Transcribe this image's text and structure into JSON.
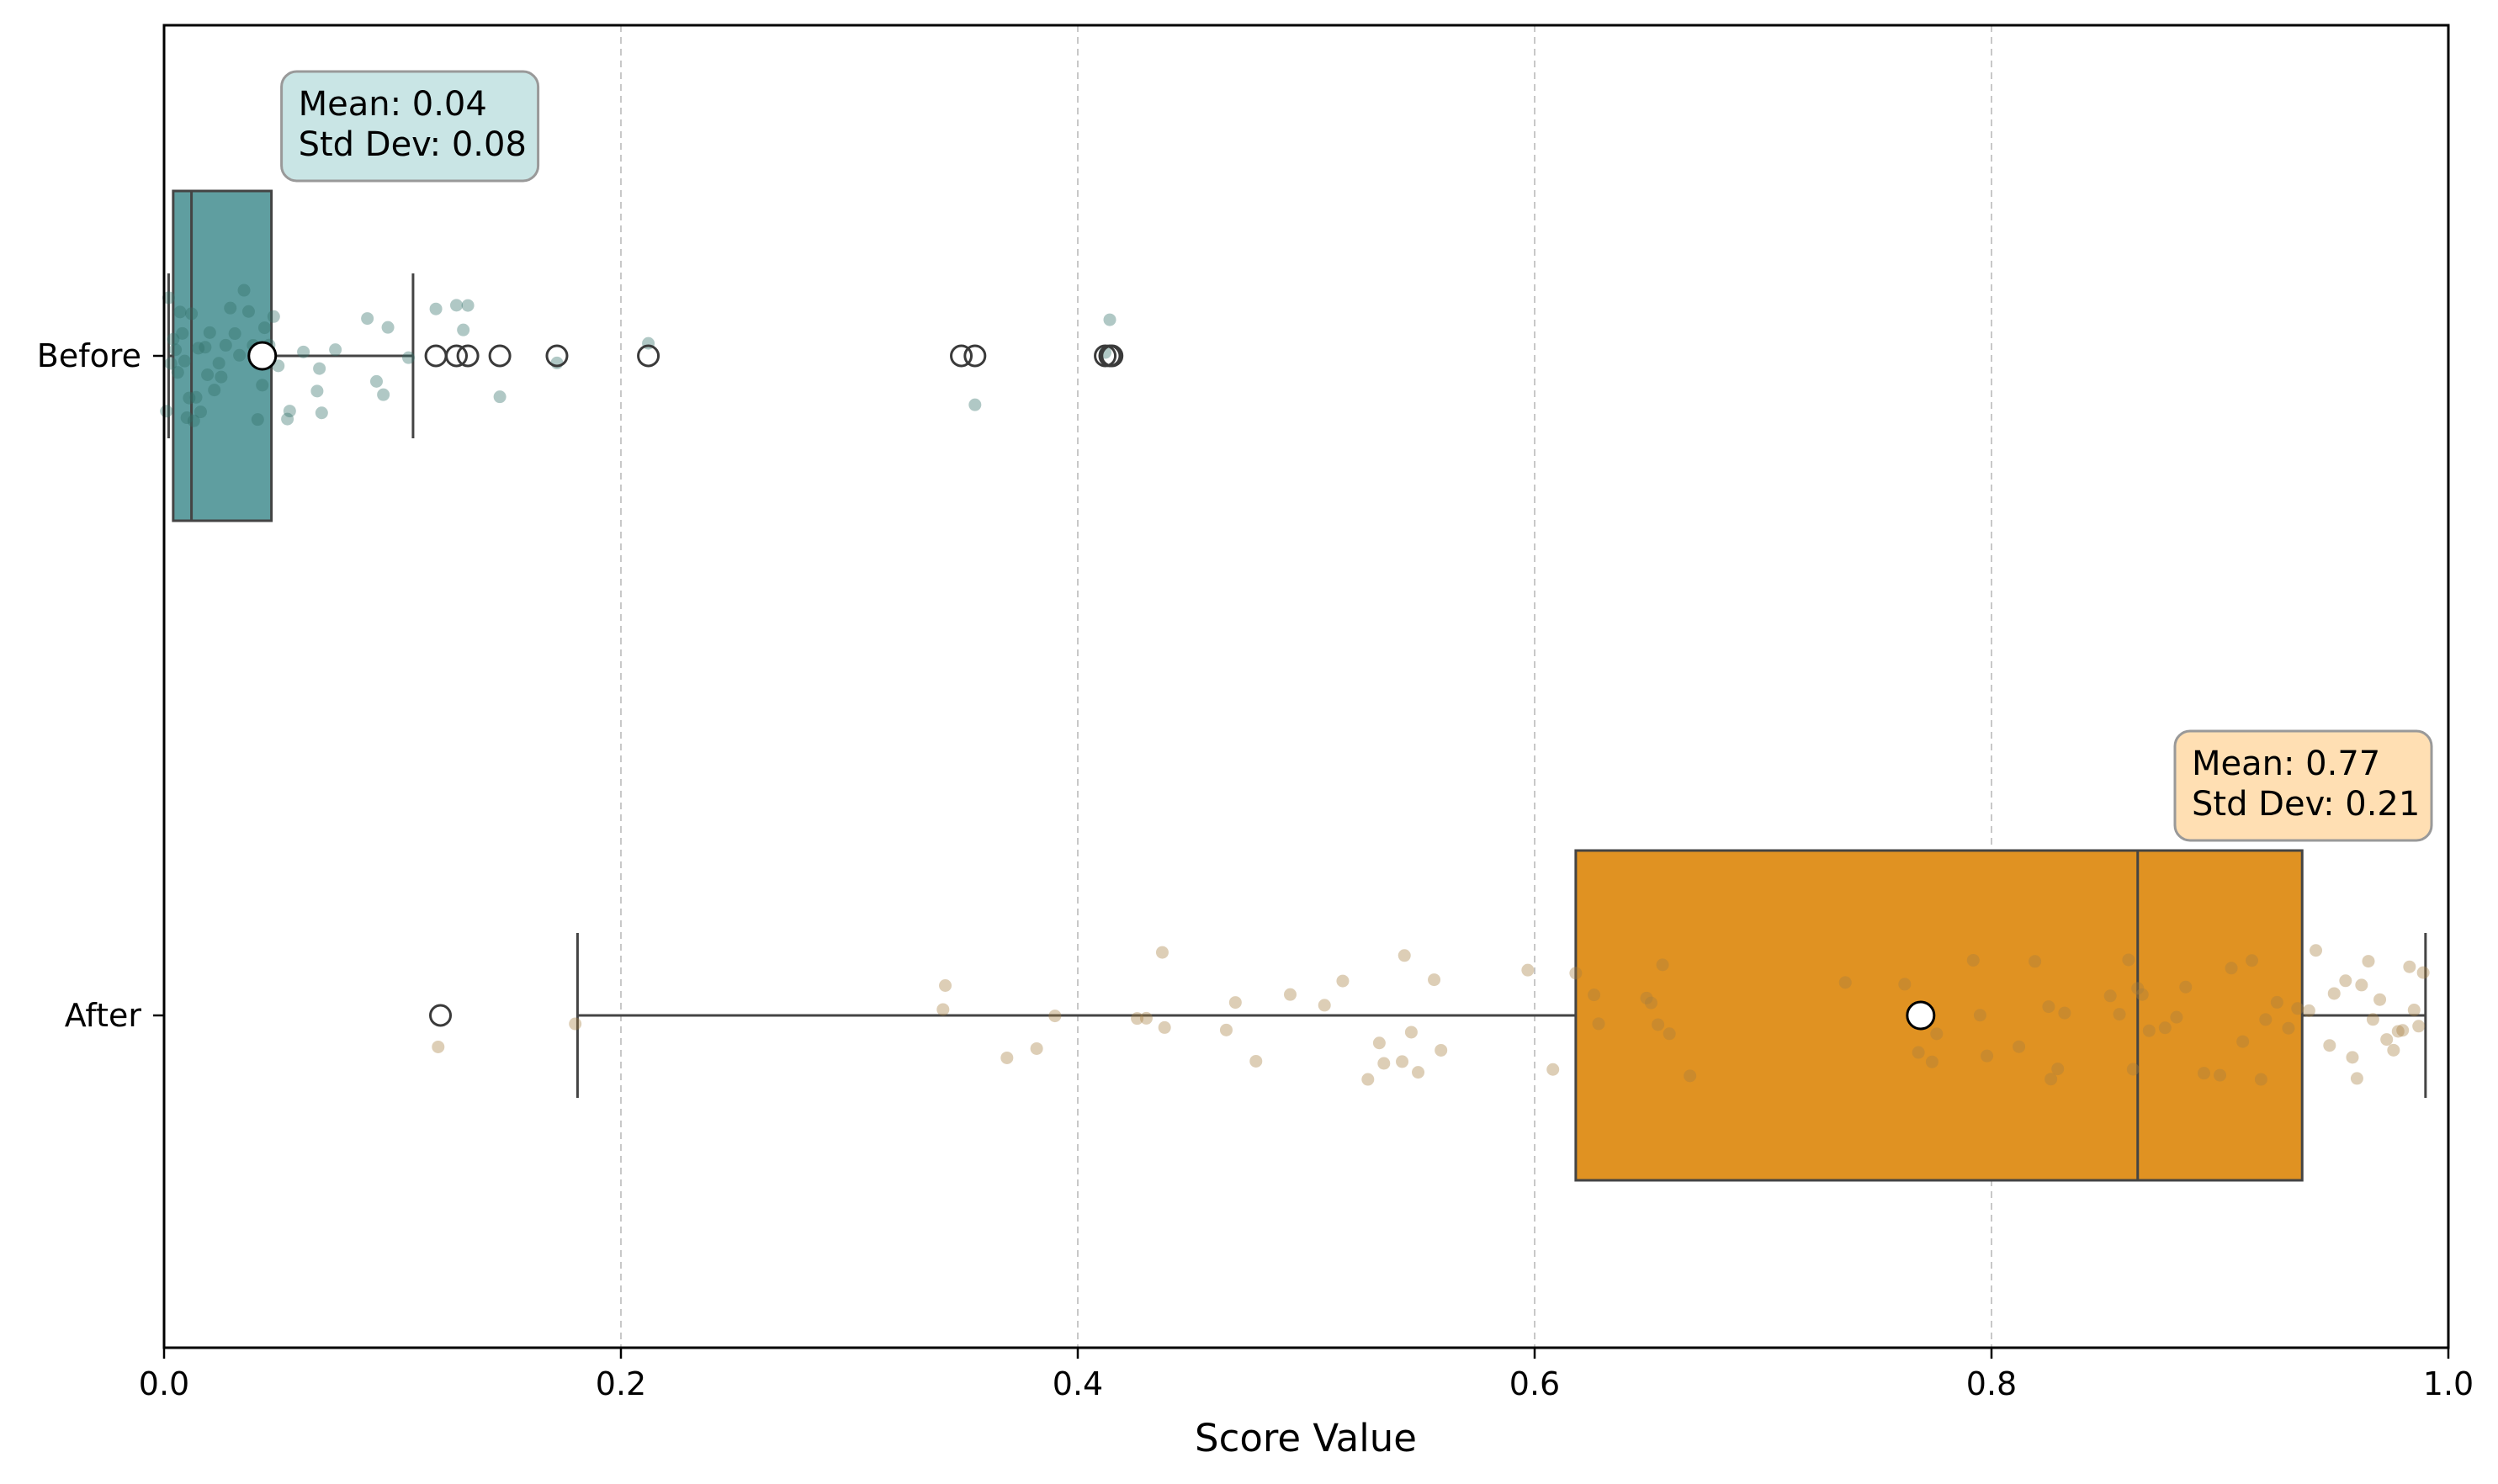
{
  "chart_data": {
    "type": "boxplot",
    "orientation": "horizontal",
    "title": "",
    "xlabel": "Score Value",
    "ylabel": "",
    "xlim": [
      0.0,
      1.0
    ],
    "xticks": [
      0.0,
      0.2,
      0.4,
      0.6,
      0.8,
      1.0
    ],
    "xtick_labels": [
      "0.0",
      "0.2",
      "0.4",
      "0.6",
      "0.8",
      "1.0"
    ],
    "grid": "x-dashed",
    "categories": [
      "Before",
      "After"
    ],
    "series": [
      {
        "name": "Before",
        "color": "#5f9ea0",
        "point_color": "#2f6f66",
        "annotation_fill": "#c9e5e5",
        "box": {
          "whisker_low": 0.002,
          "q1": 0.004,
          "median": 0.012,
          "q3": 0.047,
          "whisker_high": 0.109
        },
        "mean": 0.043,
        "mean_text": "Mean: 0.04",
        "std_text": "Std Dev: 0.08",
        "outliers": [
          0.119,
          0.128,
          0.133,
          0.147,
          0.172,
          0.212,
          0.349,
          0.355,
          0.412,
          0.414,
          0.415
        ],
        "points": [
          0.001,
          0.002,
          0.003,
          0.004,
          0.005,
          0.006,
          0.007,
          0.008,
          0.009,
          0.01,
          0.011,
          0.012,
          0.013,
          0.014,
          0.015,
          0.016,
          0.018,
          0.019,
          0.02,
          0.022,
          0.024,
          0.025,
          0.027,
          0.029,
          0.031,
          0.033,
          0.035,
          0.037,
          0.039,
          0.041,
          0.043,
          0.044,
          0.046,
          0.048,
          0.05,
          0.054,
          0.055,
          0.061,
          0.067,
          0.068,
          0.069,
          0.075,
          0.089,
          0.093,
          0.096,
          0.098,
          0.107,
          0.119,
          0.128,
          0.131,
          0.133,
          0.147,
          0.172,
          0.212,
          0.355,
          0.412,
          0.414
        ]
      },
      {
        "name": "After",
        "color": "#e09222",
        "point_color": "#a67e3e",
        "annotation_fill": "#ffdfb3",
        "box": {
          "whisker_low": 0.181,
          "q1": 0.618,
          "median": 0.864,
          "q3": 0.936,
          "whisker_high": 0.99
        },
        "mean": 0.769,
        "mean_text": "Mean: 0.77",
        "std_text": "Std Dev: 0.21",
        "outliers": [
          0.121
        ],
        "points": [
          0.12,
          0.18,
          0.341,
          0.342,
          0.369,
          0.382,
          0.39,
          0.426,
          0.43,
          0.437,
          0.438,
          0.465,
          0.469,
          0.478,
          0.493,
          0.508,
          0.516,
          0.527,
          0.532,
          0.534,
          0.542,
          0.543,
          0.546,
          0.549,
          0.556,
          0.559,
          0.597,
          0.608,
          0.618,
          0.626,
          0.628,
          0.649,
          0.651,
          0.654,
          0.656,
          0.659,
          0.668,
          0.736,
          0.762,
          0.768,
          0.774,
          0.776,
          0.792,
          0.795,
          0.798,
          0.812,
          0.819,
          0.825,
          0.826,
          0.829,
          0.832,
          0.852,
          0.856,
          0.86,
          0.862,
          0.864,
          0.866,
          0.869,
          0.876,
          0.881,
          0.885,
          0.893,
          0.9,
          0.905,
          0.91,
          0.914,
          0.918,
          0.92,
          0.925,
          0.93,
          0.934,
          0.939,
          0.942,
          0.948,
          0.95,
          0.955,
          0.958,
          0.96,
          0.962,
          0.965,
          0.967,
          0.97,
          0.973,
          0.976,
          0.978,
          0.98,
          0.983,
          0.985,
          0.987,
          0.989
        ]
      }
    ]
  }
}
